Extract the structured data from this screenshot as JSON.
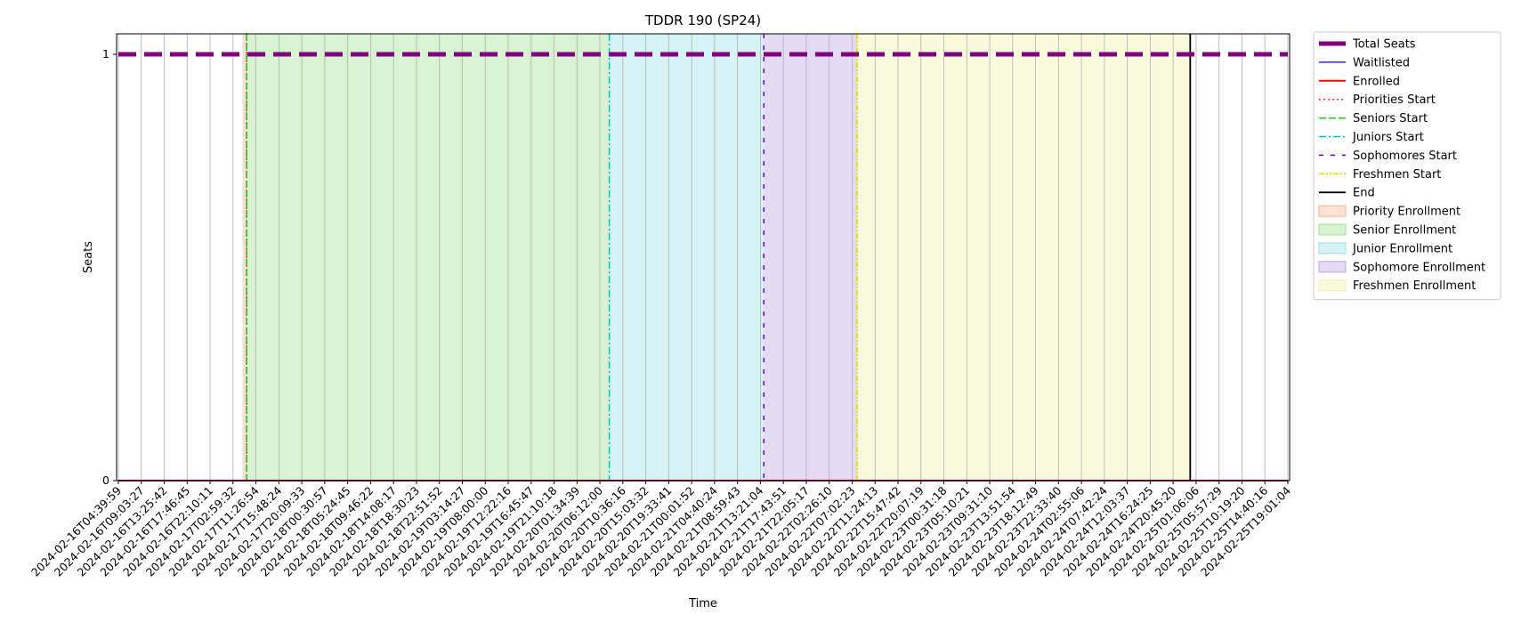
{
  "chart_data": {
    "type": "line",
    "title": "TDDR 190 (SP24)",
    "xlabel": "Time",
    "ylabel": "Seats",
    "ylim": [
      0,
      1
    ],
    "yticks": [
      0,
      1
    ],
    "x": [
      "2024-02-16T04:39:59",
      "2024-02-16T09:03:27",
      "2024-02-16T13:25:42",
      "2024-02-16T17:46:45",
      "2024-02-16T22:10:11",
      "2024-02-17T02:59:32",
      "2024-02-17T11:26:54",
      "2024-02-17T15:48:24",
      "2024-02-17T20:09:33",
      "2024-02-18T00:30:57",
      "2024-02-18T05:24:45",
      "2024-02-18T09:46:22",
      "2024-02-18T14:08:17",
      "2024-02-18T18:30:23",
      "2024-02-18T22:51:52",
      "2024-02-19T03:14:27",
      "2024-02-19T08:00:00",
      "2024-02-19T12:22:16",
      "2024-02-19T16:45:47",
      "2024-02-19T21:10:18",
      "2024-02-20T01:34:39",
      "2024-02-20T06:12:00",
      "2024-02-20T10:36:16",
      "2024-02-20T15:03:32",
      "2024-02-20T19:33:41",
      "2024-02-21T00:01:52",
      "2024-02-21T04:40:24",
      "2024-02-21T08:59:43",
      "2024-02-21T13:21:04",
      "2024-02-21T17:43:51",
      "2024-02-21T22:05:17",
      "2024-02-22T02:26:10",
      "2024-02-22T07:02:23",
      "2024-02-22T11:24:13",
      "2024-02-22T15:47:42",
      "2024-02-22T20:07:19",
      "2024-02-23T00:31:18",
      "2024-02-23T05:10:21",
      "2024-02-23T09:31:10",
      "2024-02-23T13:51:54",
      "2024-02-23T18:12:49",
      "2024-02-23T22:33:40",
      "2024-02-24T02:55:06",
      "2024-02-24T07:42:24",
      "2024-02-24T12:03:37",
      "2024-02-24T16:24:25",
      "2024-02-24T20:45:20",
      "2024-02-25T01:06:06",
      "2024-02-25T05:57:29",
      "2024-02-25T10:19:20",
      "2024-02-25T14:40:16",
      "2024-02-25T19:01:04"
    ],
    "series": [
      {
        "name": "Total Seats",
        "value": 1,
        "color": "#800080",
        "style": "dashed"
      },
      {
        "name": "Waitlisted",
        "value": 0,
        "color": "#0000ff",
        "style": "solid"
      },
      {
        "name": "Enrolled",
        "value": 0,
        "color": "#ff0000",
        "style": "solid"
      }
    ],
    "markers": [
      {
        "name": "Priorities Start",
        "at": "2024-02-17T08:00:00",
        "color": "#ff3333",
        "style": "dotted"
      },
      {
        "name": "Seniors Start",
        "at": "2024-02-17T08:00:00",
        "color": "#22bb22",
        "style": "dashed"
      },
      {
        "name": "Juniors Start",
        "at": "2024-02-20T08:00:00",
        "color": "#00bbcc",
        "style": "dashdot"
      },
      {
        "name": "Sophomores Start",
        "at": "2024-02-21T14:00:00",
        "color": "#6600cc",
        "style": "loose"
      },
      {
        "name": "Freshmen Start",
        "at": "2024-02-22T08:00:00",
        "color": "#dddd00",
        "style": "dashdotdot"
      },
      {
        "name": "End",
        "at": "2024-02-24T23:59:00",
        "color": "#000000",
        "style": "solid"
      }
    ],
    "bands": [
      {
        "name": "Priority Enrollment",
        "from": "2024-02-17T06:30:00",
        "to": "2024-02-17T08:00:00",
        "color": "#f4a582"
      },
      {
        "name": "Senior Enrollment",
        "from": "2024-02-17T08:00:00",
        "to": "2024-02-20T08:00:00",
        "color": "#8fdc7a"
      },
      {
        "name": "Junior Enrollment",
        "from": "2024-02-20T08:00:00",
        "to": "2024-02-21T14:00:00",
        "color": "#8adbe0"
      },
      {
        "name": "Sophomore Enrollment",
        "from": "2024-02-21T14:00:00",
        "to": "2024-02-22T08:00:00",
        "color": "#b494e6"
      },
      {
        "name": "Freshmen Enrollment",
        "from": "2024-02-22T08:00:00",
        "to": "2024-02-24T23:59:00",
        "color": "#eeeea0"
      }
    ],
    "legend_position": "outside-right",
    "grid": "vertical"
  }
}
